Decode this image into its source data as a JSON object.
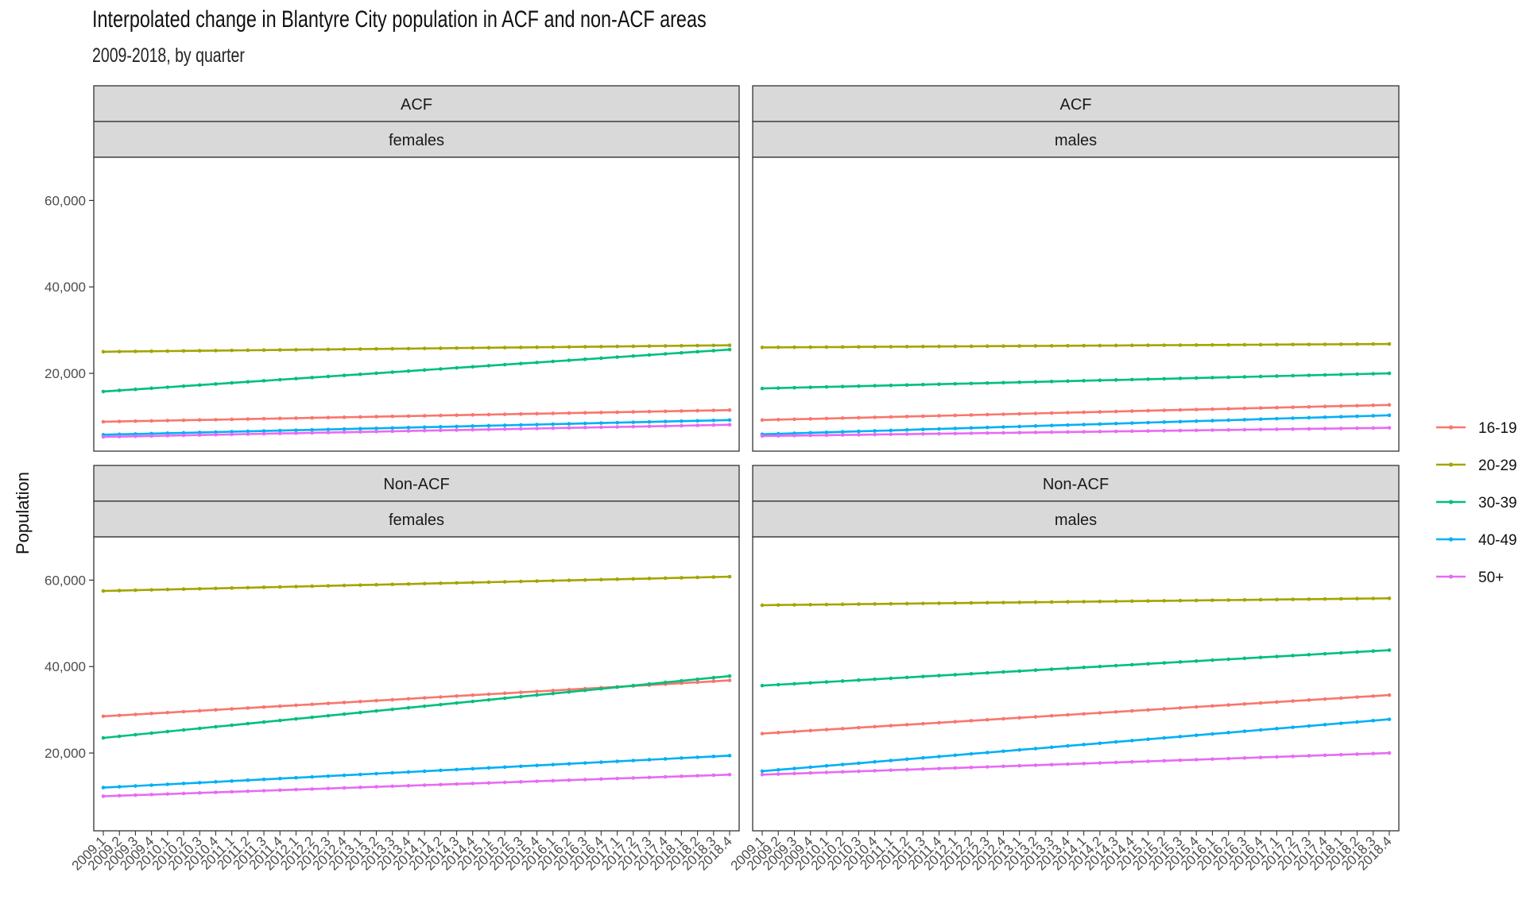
{
  "title": "Interpolated change in Blantyre City population in ACF and non-ACF areas",
  "subtitle": "2009-2018, by quarter",
  "chart_data": {
    "type": "line",
    "title": "Interpolated change in Blantyre City population in ACF and non-ACF areas",
    "subtitle": "2009-2018, by quarter",
    "xlabel": "",
    "ylabel": "Population",
    "ylim": [
      2000,
      70000
    ],
    "y_ticks": [
      20000,
      40000,
      60000
    ],
    "y_tick_labels": [
      "20,000",
      "40,000",
      "60,000"
    ],
    "x": [
      "2009.1",
      "2009.2",
      "2009.3",
      "2009.4",
      "2010.1",
      "2010.2",
      "2010.3",
      "2010.4",
      "2011.1",
      "2011.2",
      "2011.3",
      "2011.4",
      "2012.1",
      "2012.2",
      "2012.3",
      "2012.4",
      "2013.1",
      "2013.2",
      "2013.3",
      "2013.4",
      "2014.1",
      "2014.2",
      "2014.3",
      "2014.4",
      "2015.1",
      "2015.2",
      "2015.3",
      "2015.4",
      "2016.1",
      "2016.2",
      "2016.3",
      "2016.4",
      "2017.1",
      "2017.2",
      "2017.3",
      "2017.4",
      "2018.1",
      "2018.2",
      "2018.3",
      "2018.4"
    ],
    "grid": false,
    "legend": {
      "position": "right",
      "entries": [
        {
          "name": "16-19",
          "color": "#F8766D"
        },
        {
          "name": "20-29",
          "color": "#A3A500"
        },
        {
          "name": "30-39",
          "color": "#00BF7D"
        },
        {
          "name": "40-49",
          "color": "#00B0F6"
        },
        {
          "name": "50+",
          "color": "#E76BF3"
        }
      ]
    },
    "panels": [
      {
        "area": "ACF",
        "sex": "females",
        "series": [
          {
            "name": "16-19",
            "start": 8800,
            "end": 11500
          },
          {
            "name": "20-29",
            "start": 25000,
            "end": 26500
          },
          {
            "name": "30-39",
            "start": 15800,
            "end": 25500
          },
          {
            "name": "40-49",
            "start": 5800,
            "end": 9200
          },
          {
            "name": "50+",
            "start": 5300,
            "end": 8100
          }
        ]
      },
      {
        "area": "ACF",
        "sex": "males",
        "series": [
          {
            "name": "16-19",
            "start": 9200,
            "end": 12700
          },
          {
            "name": "20-29",
            "start": 26000,
            "end": 26800
          },
          {
            "name": "30-39",
            "start": 16500,
            "end": 20000
          },
          {
            "name": "40-49",
            "start": 5900,
            "end": 10300
          },
          {
            "name": "50+",
            "start": 5500,
            "end": 7400
          }
        ]
      },
      {
        "area": "Non-ACF",
        "sex": "females",
        "series": [
          {
            "name": "16-19",
            "start": 28500,
            "end": 36800
          },
          {
            "name": "20-29",
            "start": 57500,
            "end": 60800
          },
          {
            "name": "30-39",
            "start": 23500,
            "end": 37800
          },
          {
            "name": "40-49",
            "start": 12000,
            "end": 19400
          },
          {
            "name": "50+",
            "start": 10000,
            "end": 15000
          }
        ]
      },
      {
        "area": "Non-ACF",
        "sex": "males",
        "series": [
          {
            "name": "16-19",
            "start": 24500,
            "end": 33400
          },
          {
            "name": "20-29",
            "start": 54200,
            "end": 55800
          },
          {
            "name": "30-39",
            "start": 35600,
            "end": 43800
          },
          {
            "name": "40-49",
            "start": 15800,
            "end": 27800
          },
          {
            "name": "50+",
            "start": 15000,
            "end": 20000
          }
        ]
      }
    ]
  }
}
